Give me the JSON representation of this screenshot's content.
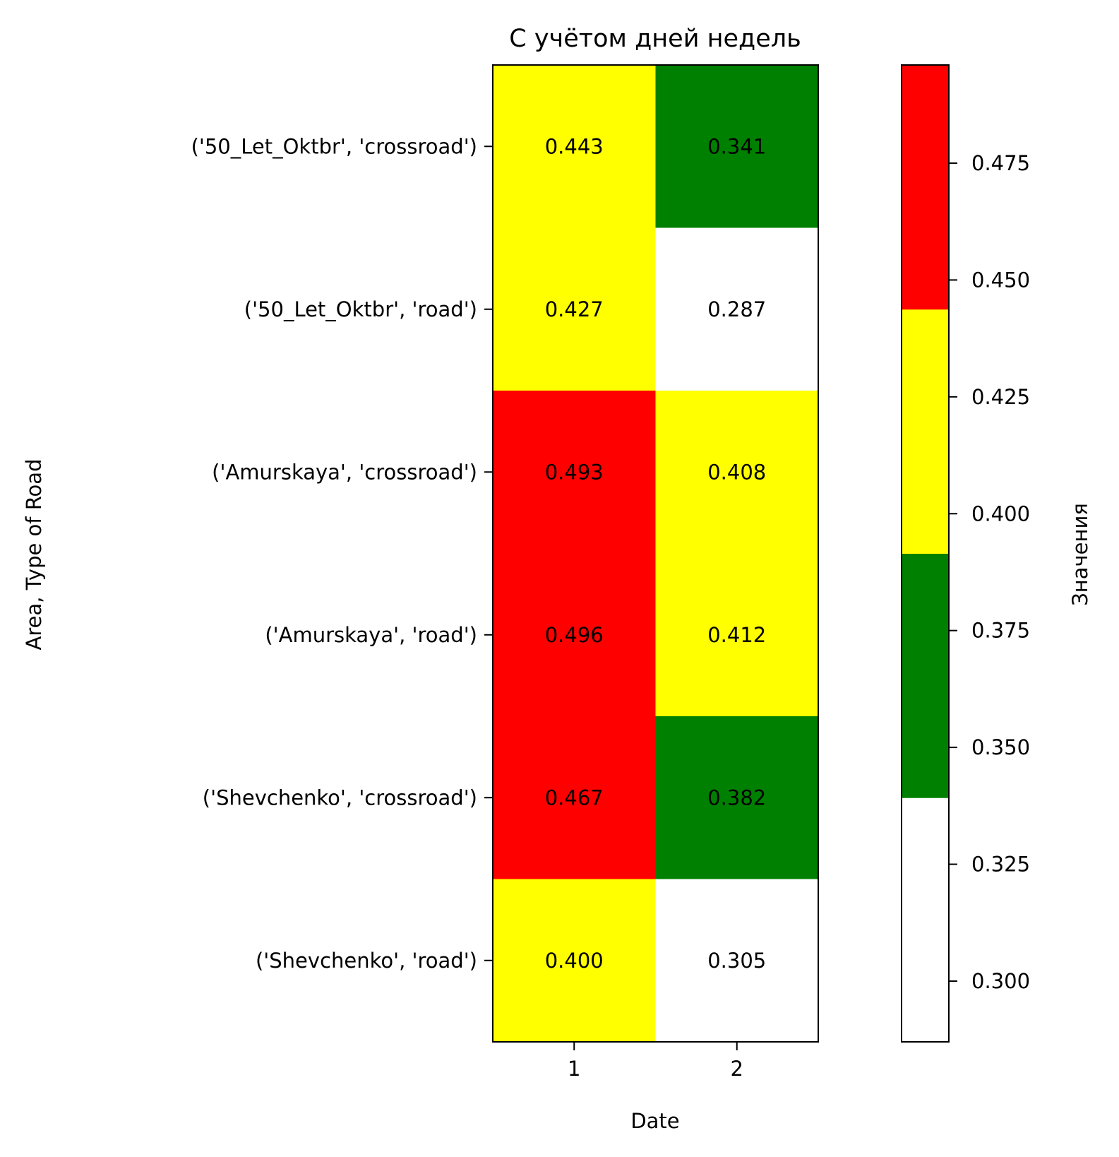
{
  "chart_data": {
    "type": "heatmap",
    "title": "С учётом дней недель",
    "xlabel": "Date",
    "ylabel": "Area, Type of Road",
    "x_categories": [
      "1",
      "2"
    ],
    "y_categories": [
      "('50_Let_Oktbr', 'crossroad')",
      "('50_Let_Oktbr', 'road')",
      "('Amurskaya', 'crossroad')",
      "('Amurskaya', 'road')",
      "('Shevchenko', 'crossroad')",
      "('Shevchenko', 'road')"
    ],
    "values": [
      [
        0.443,
        0.341
      ],
      [
        0.427,
        0.287
      ],
      [
        0.493,
        0.408
      ],
      [
        0.496,
        0.412
      ],
      [
        0.467,
        0.382
      ],
      [
        0.4,
        0.305
      ]
    ],
    "cell_labels": [
      [
        "0.443",
        "0.341"
      ],
      [
        "0.427",
        "0.287"
      ],
      [
        "0.493",
        "0.408"
      ],
      [
        "0.496",
        "0.412"
      ],
      [
        "0.467",
        "0.382"
      ],
      [
        "0.400",
        "0.305"
      ]
    ],
    "colorbar": {
      "label": "Значения",
      "range": [
        0.287,
        0.496
      ],
      "colors": [
        "#ffffff",
        "#008000",
        "#ffff00",
        "#ff0000"
      ],
      "ticks": [
        0.3,
        0.325,
        0.35,
        0.375,
        0.4,
        0.425,
        0.45,
        0.475
      ],
      "tick_labels": [
        "0.300",
        "0.325",
        "0.350",
        "0.375",
        "0.400",
        "0.425",
        "0.450",
        "0.475"
      ]
    }
  }
}
